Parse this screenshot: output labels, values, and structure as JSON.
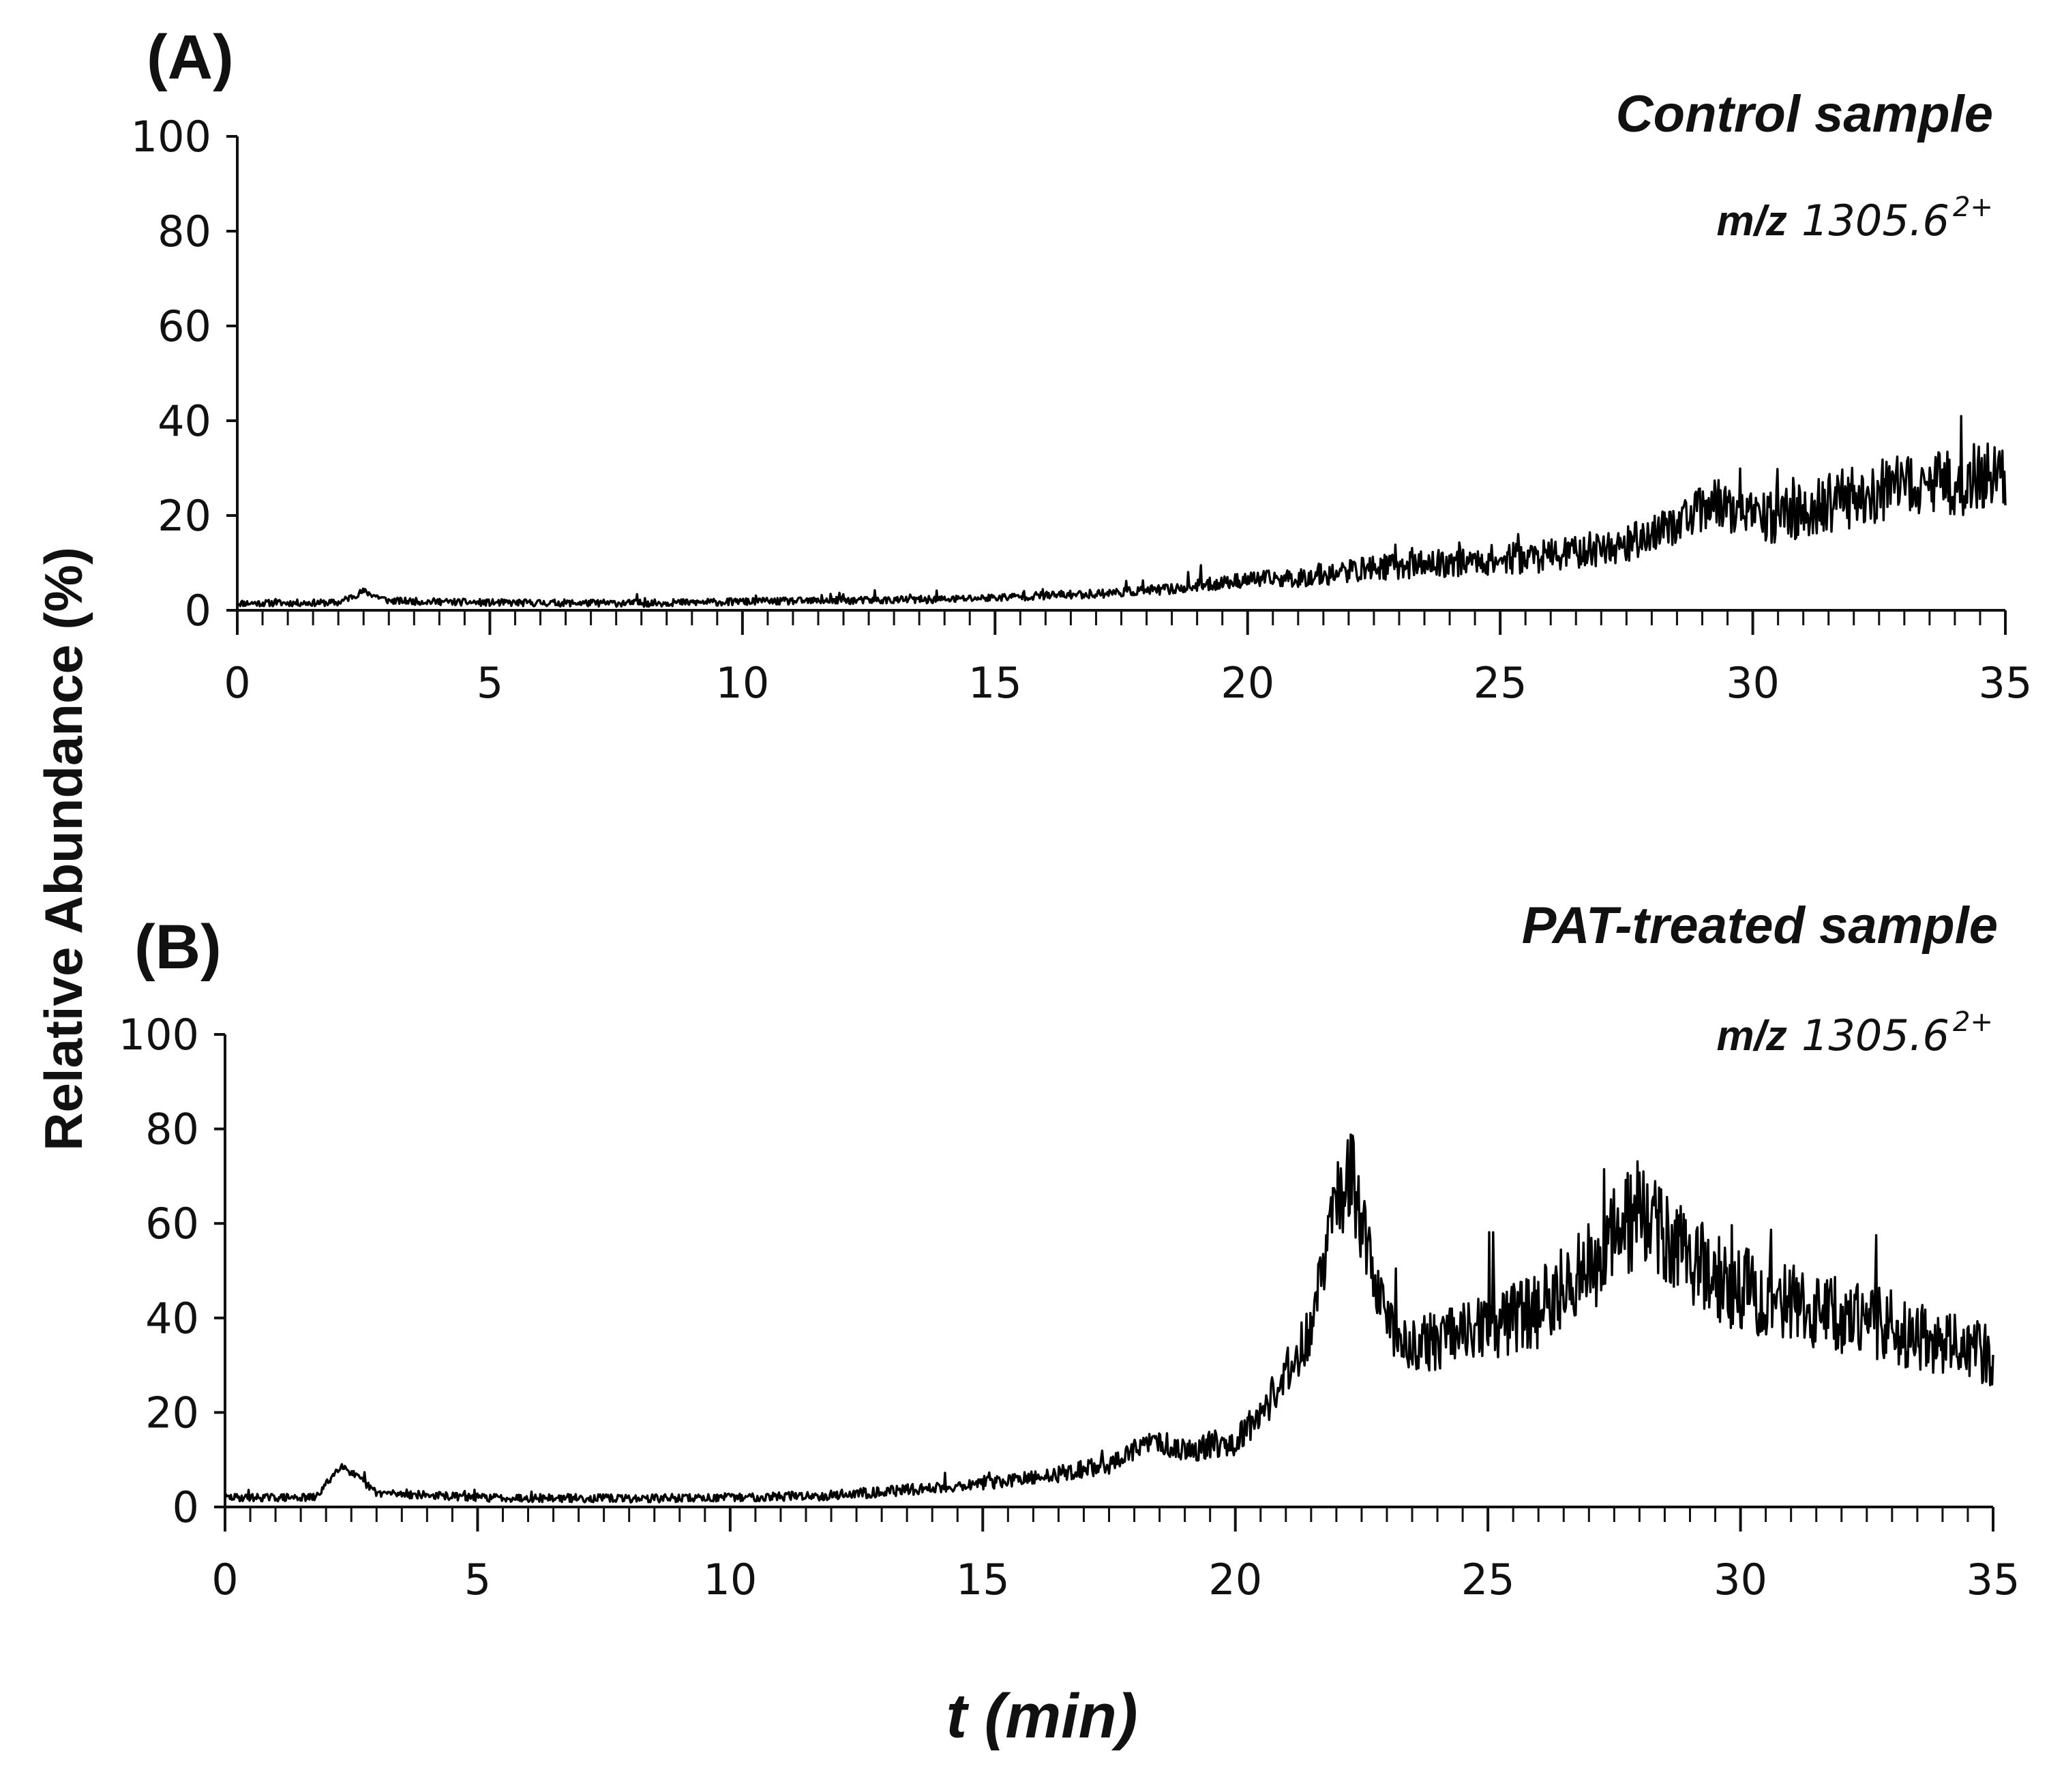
{
  "shared": {
    "ylabel": "Relative Abundance (%)",
    "xlabel": "t (min)"
  },
  "chart_data": [
    {
      "type": "line",
      "panel_label": "(A)",
      "title": "Control sample",
      "annotation": {
        "prefix": "m/z",
        "value": "1305.6",
        "superscript": "2+"
      },
      "xlim": [
        0,
        35
      ],
      "ylim": [
        0,
        100
      ],
      "xticks": [
        0,
        5,
        10,
        15,
        20,
        25,
        30,
        35
      ],
      "yticks": [
        0,
        20,
        40,
        60,
        80,
        100
      ],
      "minor_xtick_step": 0.5,
      "noise": {
        "seed": 11,
        "spike_seed": 3
      },
      "series": [
        {
          "name": "m/z 1305.6 2+ (control)",
          "color": "#000000",
          "baseline": {
            "x": [
              0,
              2.0,
              2.5,
              3.0,
              5,
              8,
              10,
              14,
              17,
              18.5,
              20,
              21,
              22.5,
              24,
              26,
              27.5,
              28.5,
              29.3,
              30,
              31,
              32,
              33,
              34,
              35
            ],
            "y": [
              1.5,
              1.6,
              4,
              2,
              1.6,
              1.5,
              1.8,
              2.3,
              3.5,
              4.5,
              6.5,
              6.8,
              9,
              10,
              11.5,
              14,
              18.5,
              23,
              19,
              21,
              24,
              26,
              27,
              29
            ]
          },
          "noise_amplitude": {
            "x": [
              0,
              15,
              18,
              20,
              22,
              25,
              28,
              30,
              32,
              35
            ],
            "y": [
              0.7,
              0.8,
              1.0,
              1.6,
              2.5,
              3.2,
              4.0,
              5.5,
              6.5,
              7.5
            ]
          }
        }
      ]
    },
    {
      "type": "line",
      "panel_label": "(B)",
      "title": "PAT-treated sample",
      "annotation": {
        "prefix": "m/z",
        "value": "1305.6",
        "superscript": "2+"
      },
      "xlim": [
        0,
        35
      ],
      "ylim": [
        0,
        100
      ],
      "xticks": [
        0,
        5,
        10,
        15,
        20,
        25,
        30,
        35
      ],
      "yticks": [
        0,
        20,
        40,
        60,
        80,
        100
      ],
      "minor_xtick_step": 0.5,
      "noise": {
        "seed": 29,
        "spike_seed": 17
      },
      "series": [
        {
          "name": "m/z 1305.6 2+ (PAT-treated)",
          "color": "#000000",
          "baseline": {
            "x": [
              0,
              1.8,
              2.3,
              3.0,
              5,
              8,
              10,
              12,
              14,
              16,
              17.5,
              18.4,
              19,
              20,
              20.5,
              21,
              21.5,
              22.0,
              22.3,
              22.7,
              23.2,
              24,
              25,
              26,
              27,
              27.5,
              28,
              28.5,
              29,
              30,
              31,
              32,
              33,
              34,
              35
            ],
            "y": [
              2,
              2,
              9,
              3,
              2,
              1.8,
              2,
              2.5,
              4,
              6,
              9,
              14,
              12,
              14,
              20,
              28,
              38,
              65,
              70,
              50,
              35,
              35,
              38,
              42,
              50,
              58,
              62,
              57,
              52,
              46,
              43,
              40,
              38,
              35,
              32
            ]
          },
          "noise_amplitude": {
            "x": [
              0,
              10,
              15,
              18,
              20,
              21.5,
              22.3,
              23,
              25,
              27,
              28,
              29,
              31,
              33,
              35
            ],
            "y": [
              0.8,
              0.9,
              1.3,
              2.2,
              3.0,
              6.0,
              10.0,
              5.5,
              7.0,
              10.0,
              12.0,
              10.0,
              8.5,
              8.0,
              6.5
            ]
          }
        }
      ]
    }
  ]
}
